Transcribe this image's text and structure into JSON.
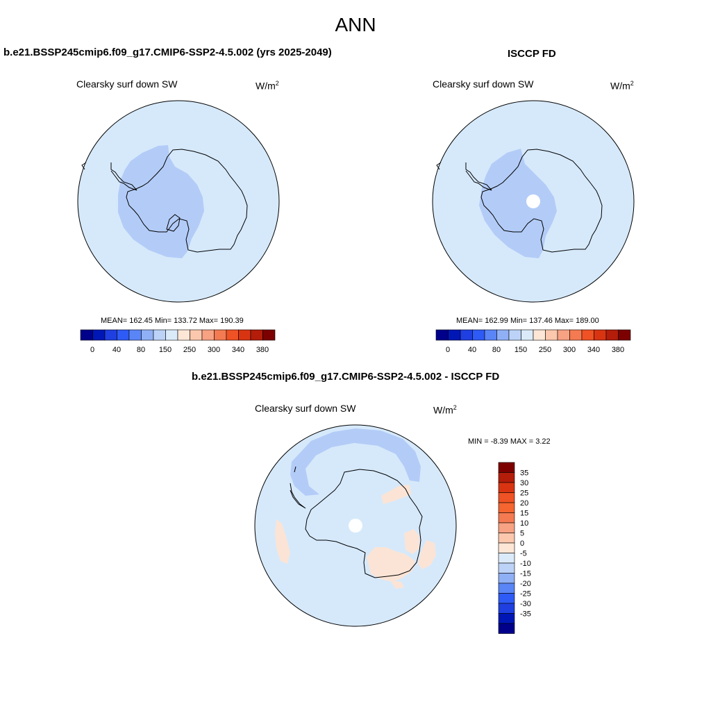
{
  "title": "ANN",
  "panels": [
    {
      "name": "b.e21.BSSP245cmip6.f09_g17.CMIP6-SSP2-4.5.002 (yrs 2025-2049)",
      "variable": "Clearsky surf down SW",
      "units": "W/m",
      "units_exp": "2",
      "stats": "MEAN= 162.45  Min= 133.72  Max= 190.39",
      "mean": 162.45,
      "min": 133.72,
      "max": 190.39
    },
    {
      "name": "ISCCP FD",
      "variable": "Clearsky surf down SW",
      "units": "W/m",
      "units_exp": "2",
      "stats": "MEAN= 162.99  Min= 137.46  Max= 189.00",
      "mean": 162.99,
      "min": 137.46,
      "max": 189.0
    },
    {
      "name": "b.e21.BSSP245cmip6.f09_g17.CMIP6-SSP2-4.5.002 - ISCCP FD",
      "variable": "Clearsky surf down SW",
      "units": "W/m",
      "units_exp": "2",
      "stats": "MIN =  -8.39 MAX =   3.22",
      "min": -8.39,
      "max": 3.22
    }
  ],
  "colorbar_fields": {
    "tick_labels": [
      "0",
      "40",
      "80",
      "150",
      "250",
      "300",
      "340",
      "380"
    ],
    "levels": [
      0,
      20,
      40,
      60,
      80,
      100,
      150,
      200,
      250,
      260,
      300,
      320,
      340,
      360,
      380
    ],
    "colors": [
      "#00008b",
      "#0017b6",
      "#1f3fe0",
      "#2e5bf5",
      "#5a85f7",
      "#8fb0f5",
      "#bcd3f7",
      "#dbeaf9",
      "#fde6d6",
      "#fbc7ad",
      "#f7a283",
      "#f47a52",
      "#ef5224",
      "#d93412",
      "#b31d0a",
      "#7d0000"
    ]
  },
  "colorbar_diff": {
    "tick_labels": [
      "35",
      "30",
      "25",
      "20",
      "15",
      "10",
      "5",
      "0",
      "-5",
      "-10",
      "-15",
      "-20",
      "-25",
      "-30",
      "-35"
    ],
    "colors_top_to_bottom": [
      "#7d0000",
      "#b31d0a",
      "#d93412",
      "#ef5224",
      "#f46530",
      "#f47a52",
      "#f7a283",
      "#fbc7ad",
      "#fde6d6",
      "#dbeaf9",
      "#bcd3f7",
      "#8fb0f5",
      "#5a85f7",
      "#2e5bf5",
      "#1f3fe0",
      "#0017b6",
      "#00008b"
    ]
  },
  "map_colors": {
    "background": "#d6e9fb",
    "low_region": "#b3ccf7",
    "positive_diff": "#fbe4d6",
    "no_data": "#ffffff",
    "coastline": "#000000"
  }
}
